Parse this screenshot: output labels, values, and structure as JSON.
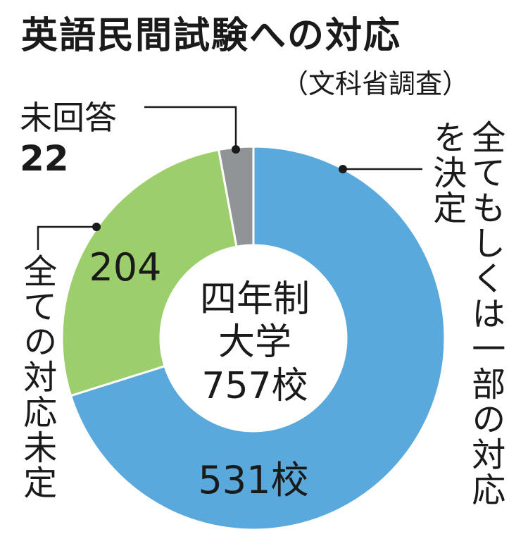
{
  "title": "英語民間試験への対応",
  "source": "（文科省調査）",
  "center": {
    "line1": "四年制",
    "line2": "大学",
    "line3": "757校"
  },
  "labels": {
    "all_decided_col1": "を決定",
    "all_decided_col2": "全てもしくは一部の対応",
    "undecided": "全ての対応未定",
    "no_answer_name": "未回答",
    "no_answer_value": "22"
  },
  "colors": {
    "decided": "#5aa9dc",
    "undecided": "#9ccf6b",
    "no_answer": "#909497"
  },
  "chart_data": {
    "type": "pie",
    "title": "英語民間試験への対応",
    "subtitle": "（文科省調査）",
    "total": 757,
    "center_text": [
      "四年制",
      "大学",
      "757校"
    ],
    "slices": [
      {
        "name": "全てもしくは一部の対応を決定",
        "value": 531,
        "label": "531校"
      },
      {
        "name": "全ての対応未定",
        "value": 204,
        "label": "204"
      },
      {
        "name": "未回答",
        "value": 22,
        "label": "22"
      }
    ]
  }
}
